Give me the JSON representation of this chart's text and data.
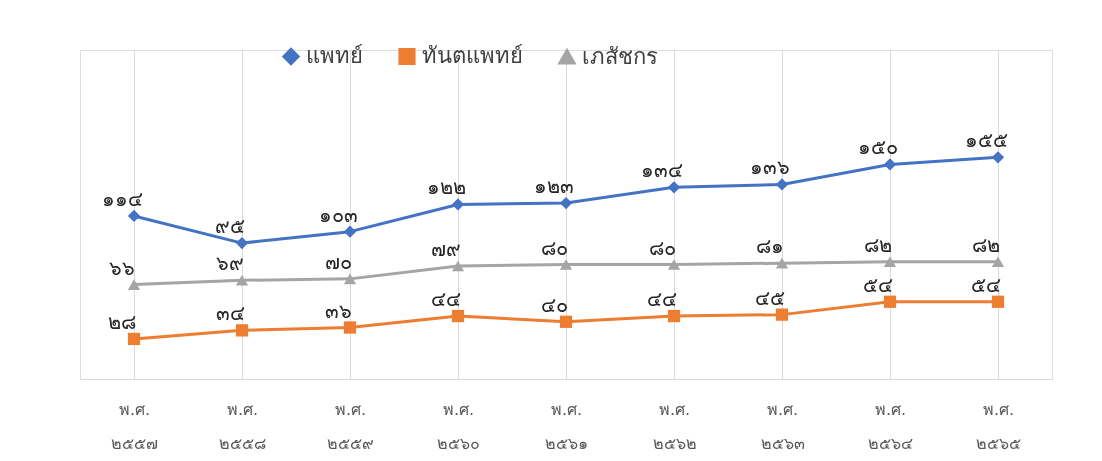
{
  "chart_data": {
    "type": "line",
    "categories": [
      "พ.ศ. ๒๕๕๗",
      "พ.ศ. ๒๕๕๘",
      "พ.ศ. ๒๕๕๙",
      "พ.ศ. ๒๕๖๐",
      "พ.ศ. ๒๕๖๑",
      "พ.ศ. ๒๕๖๒",
      "พ.ศ. ๒๕๖๓",
      "พ.ศ. ๒๕๖๔",
      "พ.ศ. ๒๕๖๕"
    ],
    "series": [
      {
        "name": "แพทย์",
        "color": "#4472c4",
        "marker": "diamond",
        "values": [
          114,
          95,
          103,
          122,
          123,
          134,
          136,
          150,
          155
        ],
        "value_labels": [
          "๑๑๔",
          "๙๕",
          "๑๐๓",
          "๑๒๒",
          "๑๒๓",
          "๑๓๔",
          "๑๓๖",
          "๑๕๐",
          "๑๕๕"
        ]
      },
      {
        "name": "ทันตแพทย์",
        "color": "#ed7d31",
        "marker": "square",
        "values": [
          28,
          34,
          36,
          44,
          40,
          44,
          45,
          54,
          54
        ],
        "value_labels": [
          "๒๘",
          "๓๔",
          "๓๖",
          "๔๔",
          "๔๐",
          "๔๔",
          "๔๕",
          "๕๔",
          "๕๔"
        ]
      },
      {
        "name": "เภสัชกร",
        "color": "#a5a5a5",
        "marker": "triangle",
        "values": [
          66,
          69,
          70,
          79,
          80,
          80,
          81,
          82,
          82
        ],
        "value_labels": [
          "๖๖",
          "๖๙",
          "๗๐",
          "๗๙",
          "๘๐",
          "๘๐",
          "๘๑",
          "๘๒",
          "๘๒"
        ]
      }
    ],
    "ylim": [
      0,
      230
    ],
    "tick_labels": "x",
    "grid": "x",
    "legend": "top"
  }
}
